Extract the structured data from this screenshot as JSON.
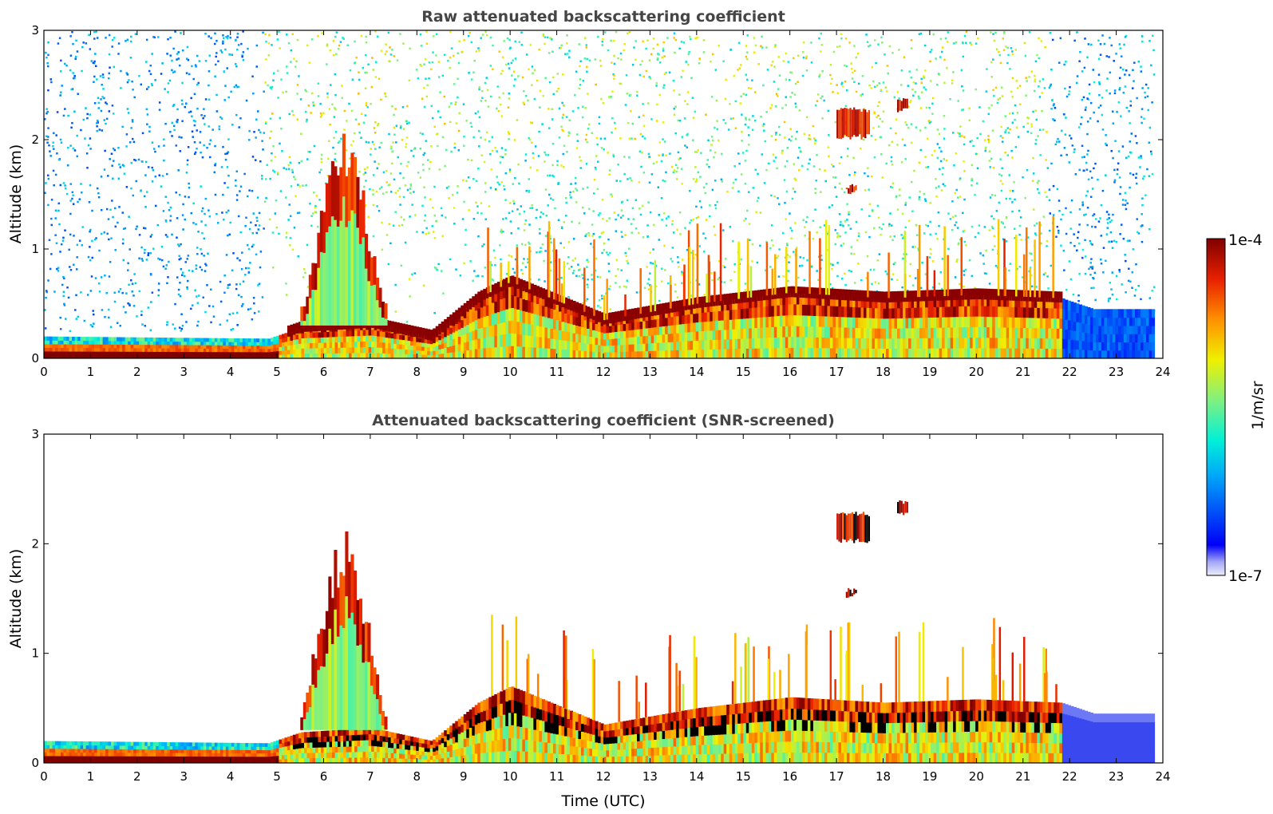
{
  "chart_data": [
    {
      "type": "heatmap",
      "title": "Raw attenuated backscattering coefficient",
      "xlabel": "",
      "ylabel": "Altitude (km)",
      "xlim": [
        0,
        24
      ],
      "ylim": [
        0,
        3
      ],
      "xticks": [
        "0",
        "1",
        "2",
        "3",
        "4",
        "5",
        "6",
        "7",
        "8",
        "9",
        "10",
        "11",
        "12",
        "13",
        "14",
        "15",
        "16",
        "17",
        "18",
        "19",
        "20",
        "21",
        "22",
        "23",
        "24"
      ],
      "yticks": [
        "0",
        "1",
        "2",
        "3"
      ],
      "screened": false,
      "features": {
        "boundary_layer_top_km": [
          [
            0,
            0.2
          ],
          [
            4.8,
            0.18
          ],
          [
            5.5,
            0.28
          ],
          [
            7,
            0.32
          ],
          [
            8.3,
            0.2
          ],
          [
            9.3,
            0.55
          ],
          [
            10,
            0.7
          ],
          [
            12,
            0.35
          ],
          [
            14,
            0.5
          ],
          [
            16,
            0.6
          ],
          [
            18,
            0.55
          ],
          [
            20,
            0.58
          ],
          [
            21.8,
            0.55
          ],
          [
            22.5,
            0.45
          ],
          [
            23.8,
            0.45
          ]
        ],
        "convective_plume": {
          "x_range": [
            5.5,
            7.3
          ],
          "top_km": 2.05
        },
        "elevated_cloud_layers": [
          {
            "x_range": [
              17.0,
              17.7
            ],
            "alt_km": [
              2.0,
              2.3
            ]
          },
          {
            "x_range": [
              18.3,
              18.5
            ],
            "alt_km": [
              2.25,
              2.4
            ]
          },
          {
            "x_range": [
              17.2,
              17.4
            ],
            "alt_km": [
              1.5,
              1.6
            ]
          }
        ]
      }
    },
    {
      "type": "heatmap",
      "title": "Attenuated backscattering coefficient (SNR-screened)",
      "xlabel": "Time (UTC)",
      "ylabel": "Altitude (km)",
      "xlim": [
        0,
        24
      ],
      "ylim": [
        0,
        3
      ],
      "xticks": [
        "0",
        "1",
        "2",
        "3",
        "4",
        "5",
        "6",
        "7",
        "8",
        "9",
        "10",
        "11",
        "12",
        "13",
        "14",
        "15",
        "16",
        "17",
        "18",
        "19",
        "20",
        "21",
        "22",
        "23",
        "24"
      ],
      "yticks": [
        "0",
        "1",
        "2",
        "3"
      ],
      "screened": true
    }
  ],
  "colorbar": {
    "label": "1/m/sr",
    "max_label": "1e-4",
    "min_label": "1e-7",
    "scale": "log",
    "colormap": "jet",
    "range": [
      1e-07,
      0.0001
    ]
  }
}
